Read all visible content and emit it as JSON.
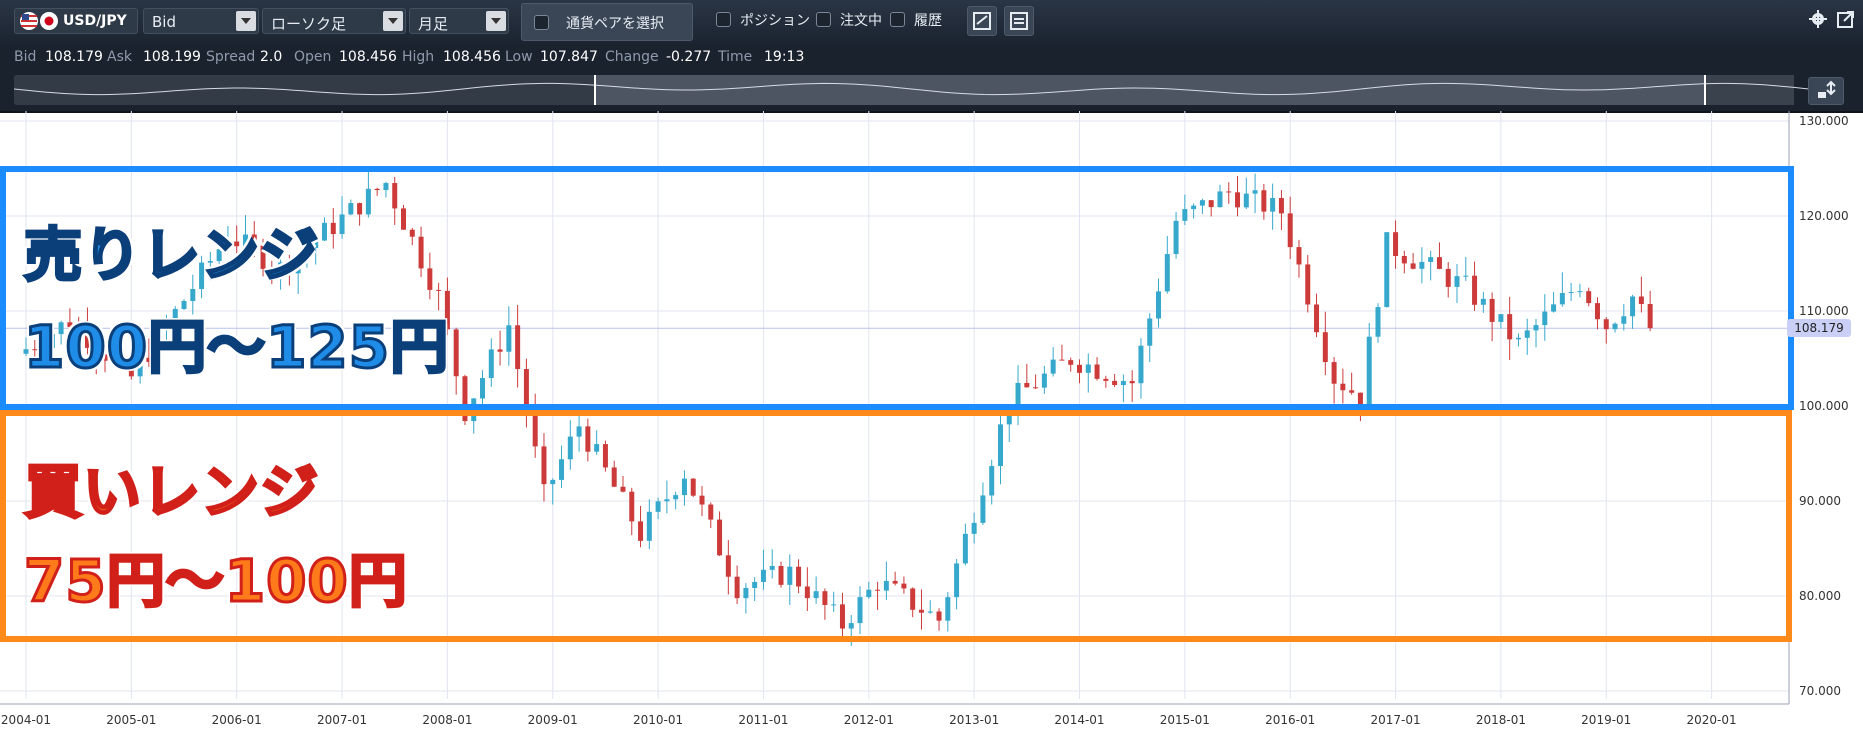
{
  "toolbar": {
    "symbol": "USD/JPY",
    "price_type": "Bid",
    "chart_type": "ローソク足",
    "period": "月足",
    "pair_select_label": "通貨ペアを選択",
    "checkboxes": [
      "ポジション",
      "注文中",
      "履歴"
    ]
  },
  "info": {
    "bid_label": "Bid",
    "bid": "108.179",
    "ask_label": "Ask",
    "ask": "108.199",
    "spread_label": "Spread",
    "spread": "2.0",
    "open_label": "Open",
    "open": "108.456",
    "high_label": "High",
    "high": "108.456",
    "low_label": "Low",
    "low": "107.847",
    "change_label": "Change",
    "change": "-0.277",
    "time_label": "Time",
    "time": "19:13"
  },
  "annotations": {
    "sell_title": "売りレンジ",
    "sell_range": "100円～125円",
    "buy_title": "買いレンジ",
    "buy_range": "75円～100円"
  },
  "colors": {
    "up": "#35a8cc",
    "down": "#cc3a3a",
    "sell_box": "#1a8cff",
    "buy_box": "#ff8a1a",
    "toolbar_bg": "#1f2835"
  },
  "chart_data": {
    "type": "candlestick",
    "symbol": "USD/JPY",
    "current_price": "108.179",
    "ylim": [
      70,
      130
    ],
    "y_ticks": [
      "130.000",
      "120.000",
      "110.000",
      "100.000",
      "90.000",
      "80.000",
      "70.000"
    ],
    "x_ticks": [
      "2004-01",
      "2005-01",
      "2006-01",
      "2007-01",
      "2008-01",
      "2009-01",
      "2010-01",
      "2011-01",
      "2012-01",
      "2013-01",
      "2014-01",
      "2015-01",
      "2016-01",
      "2017-01",
      "2018-01",
      "2019-01",
      "2020-01"
    ],
    "key_points": [
      {
        "date": "2004-01",
        "close": 106.0
      },
      {
        "date": "2004-06",
        "close": 109.0
      },
      {
        "date": "2005-01",
        "close": 103.0
      },
      {
        "date": "2005-12",
        "close": 118.0
      },
      {
        "date": "2006-06",
        "close": 114.5
      },
      {
        "date": "2007-06",
        "close": 123.5
      },
      {
        "date": "2007-12",
        "close": 111.5
      },
      {
        "date": "2008-03",
        "close": 99.5
      },
      {
        "date": "2008-08",
        "close": 108.5
      },
      {
        "date": "2008-12",
        "close": 90.5
      },
      {
        "date": "2009-04",
        "close": 98.0
      },
      {
        "date": "2009-11",
        "close": 86.5
      },
      {
        "date": "2010-04",
        "close": 93.0
      },
      {
        "date": "2010-10",
        "close": 81.0
      },
      {
        "date": "2011-04",
        "close": 82.5
      },
      {
        "date": "2011-10",
        "close": 77.0
      },
      {
        "date": "2012-02",
        "close": 81.5
      },
      {
        "date": "2012-09",
        "close": 77.5
      },
      {
        "date": "2013-05",
        "close": 100.5
      },
      {
        "date": "2013-12",
        "close": 105.0
      },
      {
        "date": "2014-07",
        "close": 102.5
      },
      {
        "date": "2014-12",
        "close": 119.5
      },
      {
        "date": "2015-06",
        "close": 122.5
      },
      {
        "date": "2015-12",
        "close": 120.5
      },
      {
        "date": "2016-06",
        "close": 103.0
      },
      {
        "date": "2016-09",
        "close": 101.0
      },
      {
        "date": "2016-12",
        "close": 117.0
      },
      {
        "date": "2017-09",
        "close": 112.5
      },
      {
        "date": "2018-03",
        "close": 106.5
      },
      {
        "date": "2018-10",
        "close": 113.0
      },
      {
        "date": "2019-01",
        "close": 108.5
      },
      {
        "date": "2019-04",
        "close": 111.5
      },
      {
        "date": "2019-06",
        "close": 108.2
      }
    ]
  }
}
